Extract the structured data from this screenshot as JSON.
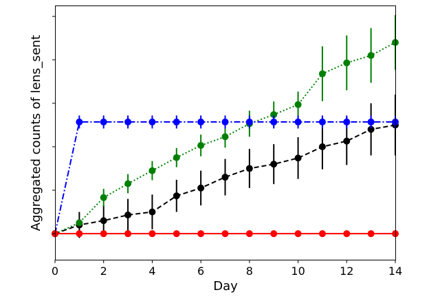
{
  "chart_data": {
    "type": "line",
    "title": "",
    "xlabel": "Day",
    "ylabel": "Aggregated counts of lens_sent",
    "xlim": [
      0,
      14
    ],
    "ylim": [
      -0.6,
      5.25
    ],
    "xticks": [
      0,
      2,
      4,
      6,
      8,
      10,
      12,
      14
    ],
    "yticks": [
      0,
      1,
      2,
      3,
      4,
      5
    ],
    "ytick_labels_visible": false,
    "grid": false,
    "legend": null,
    "x": [
      0,
      1,
      2,
      3,
      4,
      5,
      6,
      7,
      8,
      9,
      10,
      11,
      12,
      13,
      14
    ],
    "series": [
      {
        "name": "black",
        "color": "#000000",
        "linestyle": "dashed",
        "values": [
          0.0,
          0.2,
          0.3,
          0.43,
          0.5,
          0.87,
          1.05,
          1.3,
          1.5,
          1.6,
          1.74,
          2.0,
          2.13,
          2.4,
          2.5
        ],
        "errors": [
          0.0,
          0.3,
          0.35,
          0.37,
          0.4,
          0.37,
          0.4,
          0.42,
          0.45,
          0.46,
          0.48,
          0.52,
          0.55,
          0.6,
          0.7
        ]
      },
      {
        "name": "green",
        "color": "#008000",
        "linestyle": "dotted",
        "values": [
          0.0,
          0.25,
          0.83,
          1.15,
          1.45,
          1.75,
          2.03,
          2.23,
          2.53,
          2.74,
          2.97,
          3.68,
          3.93,
          4.1,
          4.4
        ],
        "errors": [
          0.0,
          0.0,
          0.2,
          0.22,
          0.22,
          0.22,
          0.25,
          0.25,
          0.3,
          0.3,
          0.3,
          0.63,
          0.63,
          0.63,
          0.63
        ]
      },
      {
        "name": "blue",
        "color": "#0000ff",
        "linestyle": "dashdot",
        "values": [
          0.0,
          2.57,
          2.57,
          2.57,
          2.57,
          2.57,
          2.57,
          2.57,
          2.57,
          2.57,
          2.57,
          2.57,
          2.57,
          2.57,
          2.57
        ],
        "errors": [
          0.0,
          0.15,
          0.15,
          0.15,
          0.15,
          0.15,
          0.15,
          0.15,
          0.15,
          0.15,
          0.15,
          0.15,
          0.15,
          0.15,
          0.15
        ]
      },
      {
        "name": "red",
        "color": "#ff0000",
        "linestyle": "solid",
        "values": [
          0.0,
          0.0,
          0.0,
          0.0,
          0.0,
          0.0,
          0.0,
          0.0,
          0.0,
          0.0,
          0.0,
          0.0,
          0.0,
          0.0,
          0.0
        ],
        "errors": [
          0.0,
          0.0,
          0.0,
          0.0,
          0.0,
          0.0,
          0.0,
          0.0,
          0.0,
          0.0,
          0.0,
          0.0,
          0.0,
          0.0,
          0.0
        ]
      }
    ]
  }
}
